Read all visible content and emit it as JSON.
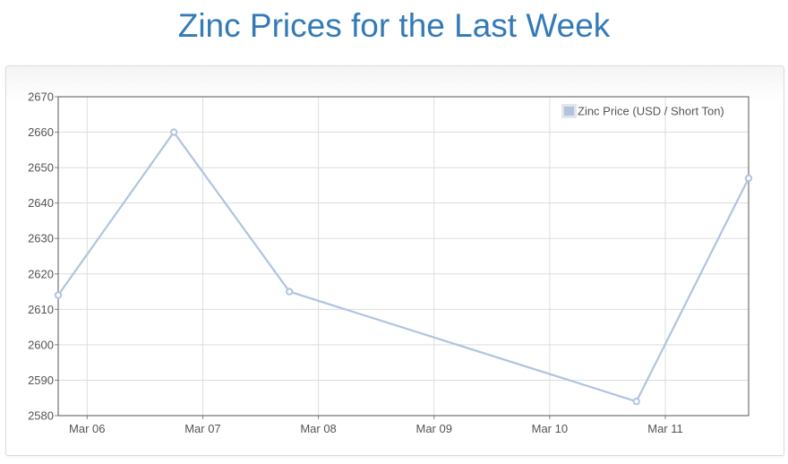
{
  "page": {
    "title": "Zinc Prices for the Last Week"
  },
  "chart_data": {
    "type": "line",
    "title": "",
    "xlabel": "",
    "ylabel": "",
    "x_ticks": [
      "Mar 06",
      "Mar 07",
      "Mar 08",
      "Mar 09",
      "Mar 10",
      "Mar 11"
    ],
    "x_tick_values": [
      6,
      7,
      8,
      9,
      10,
      11
    ],
    "x_range": [
      5.75,
      11.72
    ],
    "y_ticks": [
      2580,
      2590,
      2600,
      2610,
      2620,
      2630,
      2640,
      2650,
      2660,
      2670
    ],
    "ylim": [
      2580,
      2670
    ],
    "grid": true,
    "legend_position": "top-right",
    "series": [
      {
        "name": "Zinc Price (USD / Short Ton)",
        "color": "#b0c4de",
        "x": [
          5.75,
          6.75,
          7.75,
          10.75,
          11.72
        ],
        "y": [
          2614,
          2660,
          2615,
          2584,
          2647
        ]
      }
    ]
  }
}
